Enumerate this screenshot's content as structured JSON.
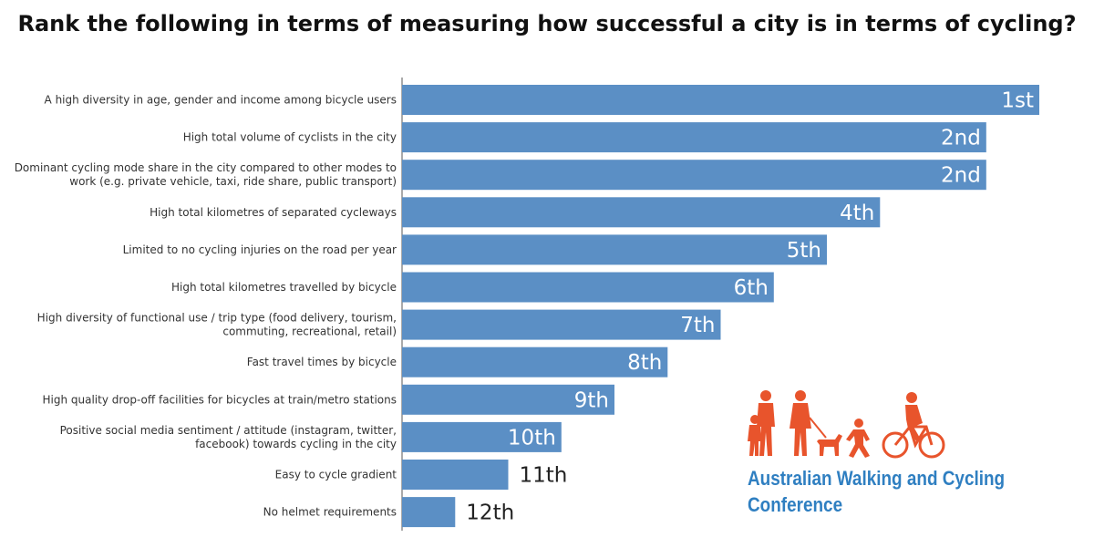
{
  "chart_data": {
    "type": "bar",
    "orientation": "horizontal",
    "title": "Rank the following in terms of measuring how successful a city is in terms of cycling?",
    "categories": [
      "A high diversity in age, gender and income among bicycle users",
      "High total volume of cyclists in the city",
      "Dominant cycling mode share in the city compared to other modes to work (e.g. private vehicle, taxi, ride share, public transport)",
      "High total kilometres of separated cycleways",
      "Limited to no cycling injuries on the road per year",
      "High total kilometres travelled by bicycle",
      "High diversity of functional use / trip type (food delivery, tourism, commuting, recreational, retail)",
      "Fast travel times by bicycle",
      "High quality drop-off facilities for bicycles at train/metro stations",
      "Positive social media sentiment / attitude (instagram, twitter, facebook) towards cycling in the city",
      "Easy to cycle gradient",
      "No helmet requirements"
    ],
    "category_lines": [
      [
        "A high diversity in age, gender and income among bicycle users"
      ],
      [
        "High total volume of cyclists in the city"
      ],
      [
        "Dominant cycling mode share in the city compared to other modes to",
        "work (e.g. private vehicle, taxi, ride share, public transport)"
      ],
      [
        "High total kilometres of separated cycleways"
      ],
      [
        "Limited to no cycling injuries on the road per year"
      ],
      [
        "High total kilometres travelled by bicycle"
      ],
      [
        "High diversity of functional use / trip type (food delivery, tourism,",
        "commuting, recreational, retail)"
      ],
      [
        "Fast travel times by bicycle"
      ],
      [
        "High quality drop-off facilities for bicycles at train/metro stations"
      ],
      [
        "Positive social media sentiment / attitude (instagram, twitter,",
        "facebook) towards cycling in the city"
      ],
      [
        "Easy to cycle gradient"
      ],
      [
        "No helmet requirements"
      ]
    ],
    "values": [
      12,
      11,
      11,
      9,
      8,
      7,
      6,
      5,
      4,
      3,
      2,
      1
    ],
    "data_labels": [
      "1st",
      "2nd",
      "2nd",
      "4th",
      "5th",
      "6th",
      "7th",
      "8th",
      "9th",
      "10th",
      "11th",
      "12th"
    ],
    "xlim": [
      0,
      12
    ],
    "grid": false,
    "colors": {
      "bar": "#5b8fc5",
      "label_inside": "#ffffff",
      "label_outside": "#222222"
    }
  },
  "logo": {
    "line1": "Australian Walking and Cycling",
    "line2": "Conference",
    "color": "#2f7fc1",
    "figure_color": "#e8542c"
  }
}
